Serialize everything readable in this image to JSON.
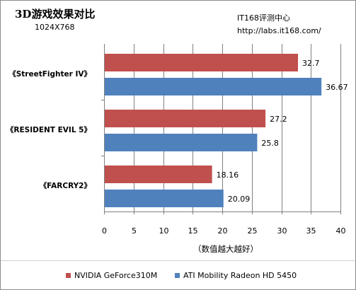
{
  "header": {
    "title": "3D游戏效果对比",
    "subtitle": "1024X768",
    "source_name": "IT168评测中心",
    "source_url": "http://labs.it168.com/"
  },
  "chart_data": {
    "type": "bar",
    "orientation": "horizontal",
    "categories": [
      "《StreetFighter IV》",
      "《RESIDENT EVIL 5》",
      "《FARCRY2》"
    ],
    "series": [
      {
        "name": "NVIDIA GeForce310M",
        "values": [
          32.7,
          27.2,
          18.16
        ],
        "color": "#c0504d"
      },
      {
        "name": "ATI Mobility Radeon HD 5450",
        "values": [
          36.67,
          25.8,
          20.09
        ],
        "color": "#4f81bd"
      }
    ],
    "value_labels": [
      [
        "32.7",
        "27.2",
        "18.16"
      ],
      [
        "36.67",
        "25.8",
        "20.09"
      ]
    ],
    "xlim": [
      0,
      40
    ],
    "x_ticks": [
      "0",
      "5",
      "10",
      "15",
      "20",
      "25",
      "30",
      "35",
      "40"
    ],
    "xlabel": "（数值越大越好）",
    "grid": true,
    "legend_position": "bottom"
  }
}
